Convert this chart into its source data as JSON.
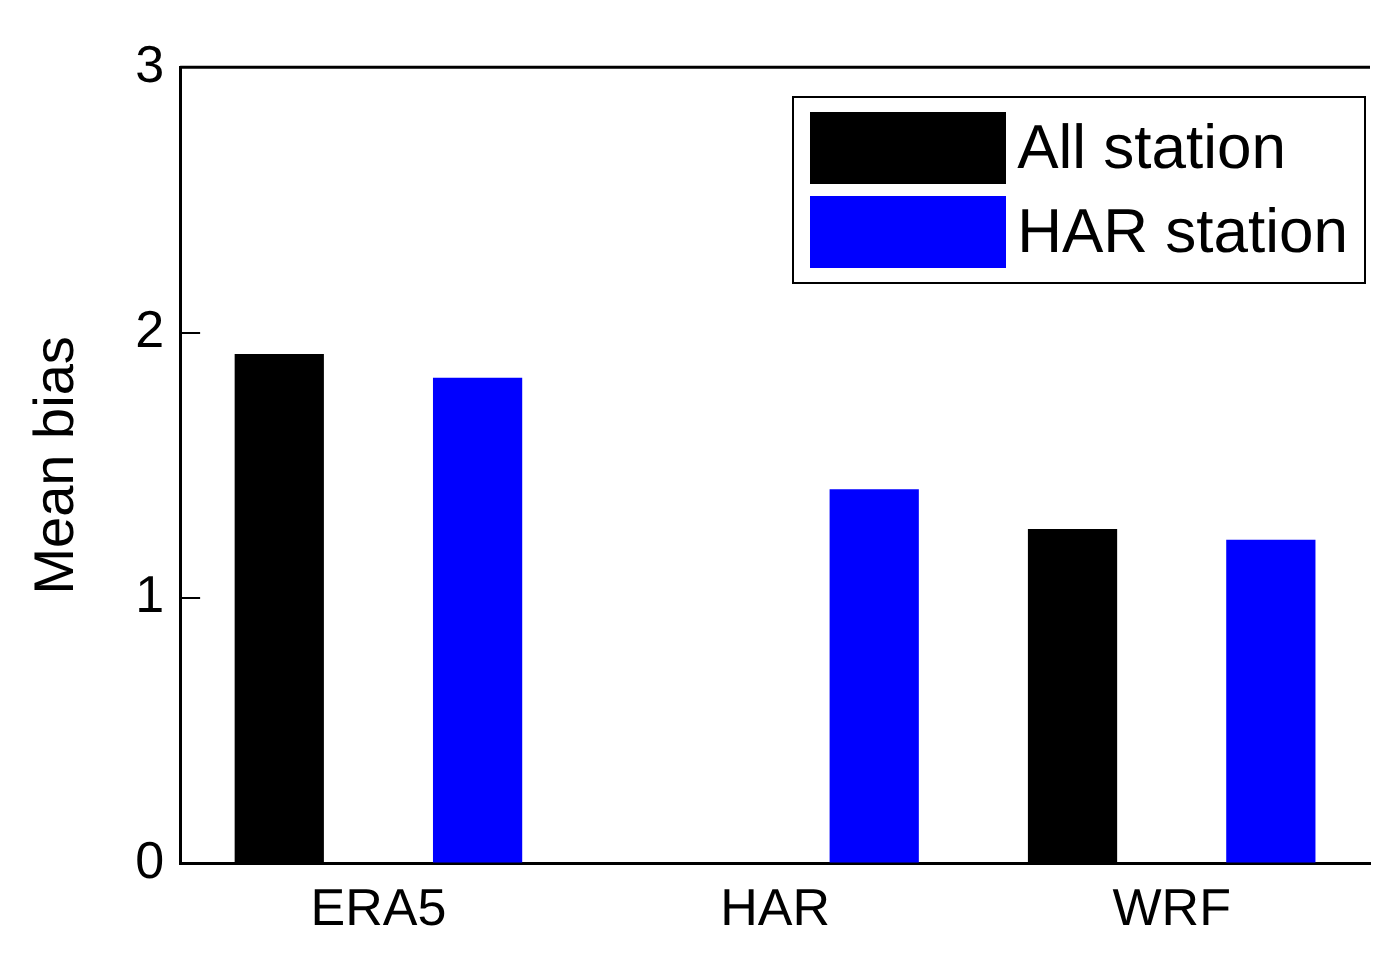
{
  "chart_data": {
    "type": "bar",
    "ylabel": "Mean bias",
    "categories": [
      "ERA5",
      "HAR",
      "WRF"
    ],
    "series": [
      {
        "name": "All station",
        "color": "#000000",
        "values": [
          1.92,
          null,
          1.26
        ]
      },
      {
        "name": "HAR station",
        "color": "#0000ff",
        "values": [
          1.83,
          1.41,
          1.22
        ]
      }
    ],
    "ylim": [
      0,
      3
    ],
    "yticks": [
      0,
      1,
      2,
      3
    ],
    "grid": false,
    "legend": "top right"
  }
}
